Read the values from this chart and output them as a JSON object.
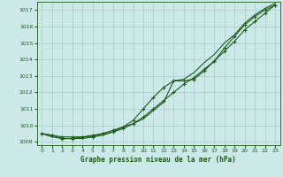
{
  "title": "Graphe pression niveau de la mer (hPa)",
  "background_color": "#cce8e8",
  "grid_color": "#aacccc",
  "line_color": "#1a5c1a",
  "xlim": [
    -0.5,
    23.5
  ],
  "ylim": [
    1008.8,
    1017.5
  ],
  "yticks": [
    1009,
    1010,
    1011,
    1012,
    1013,
    1014,
    1015,
    1016,
    1017
  ],
  "xticks": [
    0,
    1,
    2,
    3,
    4,
    5,
    6,
    7,
    8,
    9,
    10,
    11,
    12,
    13,
    14,
    15,
    16,
    17,
    18,
    19,
    20,
    21,
    22,
    23
  ],
  "series1_x": [
    0,
    1,
    2,
    3,
    4,
    5,
    6,
    7,
    8,
    9,
    10,
    11,
    12,
    13,
    14,
    15,
    16,
    17,
    18,
    19,
    20,
    21,
    22,
    23
  ],
  "series1_y": [
    1009.5,
    1009.4,
    1009.3,
    1009.3,
    1009.3,
    1009.4,
    1009.5,
    1009.6,
    1009.8,
    1010.1,
    1010.5,
    1011.0,
    1011.5,
    1012.0,
    1012.5,
    1012.9,
    1013.4,
    1013.9,
    1014.5,
    1015.1,
    1015.8,
    1016.3,
    1016.8,
    1017.3
  ],
  "series2_x": [
    0,
    1,
    2,
    3,
    4,
    5,
    6,
    7,
    8,
    9,
    10,
    11,
    12,
    13,
    14,
    15,
    16,
    17,
    18,
    19,
    20,
    21,
    22,
    23
  ],
  "series2_y": [
    1009.5,
    1009.4,
    1009.2,
    1009.2,
    1009.3,
    1009.3,
    1009.5,
    1009.7,
    1009.9,
    1010.3,
    1011.0,
    1011.7,
    1012.3,
    1012.7,
    1012.7,
    1012.8,
    1013.3,
    1013.9,
    1014.7,
    1015.4,
    1016.1,
    1016.6,
    1017.0,
    1017.3
  ],
  "series3_x": [
    0,
    1,
    2,
    3,
    4,
    5,
    6,
    7,
    8,
    9,
    10,
    11,
    12,
    13,
    14,
    15,
    16,
    17,
    18,
    19,
    20,
    21,
    22,
    23
  ],
  "series3_y": [
    1009.5,
    1009.3,
    1009.2,
    1009.2,
    1009.2,
    1009.3,
    1009.4,
    1009.6,
    1009.9,
    1010.1,
    1010.4,
    1010.9,
    1011.4,
    1012.7,
    1012.8,
    1013.2,
    1013.8,
    1014.3,
    1015.0,
    1015.5,
    1016.2,
    1016.7,
    1017.1,
    1017.4
  ]
}
